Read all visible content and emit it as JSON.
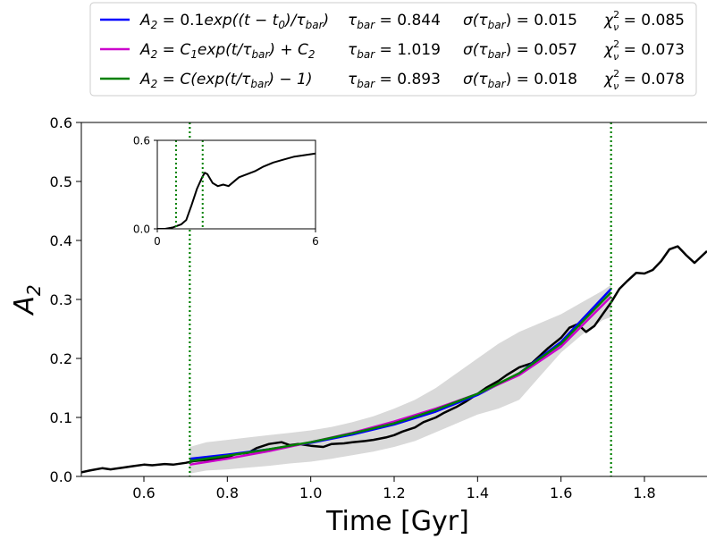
{
  "chart_data": [
    {
      "type": "line",
      "xlabel": "Time [Gyr]",
      "ylabel": "A",
      "ylabel_sub": "2",
      "xlim": [
        0.45,
        1.95
      ],
      "ylim": [
        0.0,
        0.6
      ],
      "xticks": [
        0.6,
        0.8,
        1.0,
        1.2,
        1.4,
        1.6,
        1.8
      ],
      "yticks": [
        0.0,
        0.1,
        0.2,
        0.3,
        0.4,
        0.5,
        0.6
      ],
      "grid": false,
      "legend_position": "top-center, above plot",
      "vlines": [
        0.71,
        1.72
      ],
      "vline_color": "#008000",
      "fit_range": [
        0.71,
        1.72
      ],
      "confidence_band": {
        "color": "#d9d9d9",
        "x": [
          0.71,
          0.75,
          0.8,
          0.85,
          0.9,
          0.95,
          1.0,
          1.05,
          1.1,
          1.15,
          1.2,
          1.25,
          1.3,
          1.35,
          1.4,
          1.45,
          1.5,
          1.55,
          1.6,
          1.65,
          1.7,
          1.72
        ],
        "lower": [
          0.005,
          0.01,
          0.012,
          0.015,
          0.018,
          0.022,
          0.025,
          0.03,
          0.036,
          0.042,
          0.05,
          0.06,
          0.075,
          0.09,
          0.105,
          0.115,
          0.13,
          0.17,
          0.21,
          0.24,
          0.265,
          0.27
        ],
        "upper": [
          0.05,
          0.058,
          0.062,
          0.066,
          0.07,
          0.074,
          0.078,
          0.084,
          0.092,
          0.102,
          0.115,
          0.13,
          0.15,
          0.175,
          0.2,
          0.225,
          0.245,
          0.26,
          0.275,
          0.295,
          0.315,
          0.325
        ]
      },
      "data_series": {
        "color": "#000000",
        "x": [
          0.45,
          0.47,
          0.5,
          0.52,
          0.55,
          0.57,
          0.6,
          0.62,
          0.65,
          0.67,
          0.7,
          0.72,
          0.75,
          0.78,
          0.8,
          0.82,
          0.85,
          0.87,
          0.9,
          0.93,
          0.95,
          0.97,
          1.0,
          1.03,
          1.05,
          1.08,
          1.1,
          1.13,
          1.15,
          1.18,
          1.2,
          1.22,
          1.25,
          1.27,
          1.3,
          1.32,
          1.35,
          1.37,
          1.4,
          1.42,
          1.45,
          1.47,
          1.5,
          1.53,
          1.55,
          1.57,
          1.6,
          1.62,
          1.64,
          1.66,
          1.68,
          1.7,
          1.72,
          1.74,
          1.76,
          1.78,
          1.8,
          1.82,
          1.84,
          1.86,
          1.88,
          1.9,
          1.92,
          1.95
        ],
        "y": [
          0.007,
          0.01,
          0.014,
          0.012,
          0.015,
          0.017,
          0.02,
          0.019,
          0.021,
          0.02,
          0.023,
          0.026,
          0.028,
          0.03,
          0.032,
          0.038,
          0.04,
          0.048,
          0.055,
          0.058,
          0.053,
          0.055,
          0.052,
          0.05,
          0.055,
          0.056,
          0.058,
          0.06,
          0.062,
          0.066,
          0.07,
          0.076,
          0.083,
          0.092,
          0.1,
          0.108,
          0.118,
          0.126,
          0.14,
          0.15,
          0.162,
          0.172,
          0.185,
          0.192,
          0.205,
          0.218,
          0.235,
          0.252,
          0.258,
          0.245,
          0.255,
          0.275,
          0.295,
          0.318,
          0.332,
          0.345,
          0.344,
          0.35,
          0.365,
          0.385,
          0.39,
          0.375,
          0.362,
          0.382
        ]
      },
      "series": [
        {
          "name": "A₂ = 0.1exp((t − t₀)/τbar)",
          "color": "#0000ff",
          "tau_bar": "0.844",
          "sigma_tau": "0.015",
          "chi2": "0.085",
          "x": [
            0.71,
            0.8,
            0.9,
            1.0,
            1.1,
            1.2,
            1.3,
            1.4,
            1.5,
            1.6,
            1.72
          ],
          "y": [
            0.03,
            0.037,
            0.046,
            0.057,
            0.071,
            0.088,
            0.11,
            0.138,
            0.175,
            0.228,
            0.318
          ]
        },
        {
          "name": "A₂ = C₁exp(t/τbar) + C₂",
          "color": "#cc00cc",
          "tau_bar": "1.019",
          "sigma_tau": "0.057",
          "chi2": "0.073",
          "x": [
            0.71,
            0.8,
            0.9,
            1.0,
            1.1,
            1.2,
            1.3,
            1.4,
            1.5,
            1.6,
            1.72
          ],
          "y": [
            0.02,
            0.03,
            0.043,
            0.058,
            0.074,
            0.093,
            0.115,
            0.14,
            0.172,
            0.22,
            0.305
          ]
        },
        {
          "name": "A₂ = C(exp(t/τbar) − 1)",
          "color": "#008000",
          "tau_bar": "0.893",
          "sigma_tau": "0.018",
          "chi2": "0.078",
          "x": [
            0.71,
            0.8,
            0.9,
            1.0,
            1.1,
            1.2,
            1.3,
            1.4,
            1.5,
            1.6,
            1.72
          ],
          "y": [
            0.026,
            0.035,
            0.046,
            0.058,
            0.073,
            0.09,
            0.113,
            0.14,
            0.175,
            0.225,
            0.312
          ]
        }
      ]
    },
    {
      "type": "line",
      "role": "inset",
      "xlim": [
        0,
        6
      ],
      "ylim": [
        0.0,
        0.6
      ],
      "xticks": [
        0,
        6
      ],
      "yticks": [
        0.0,
        0.6
      ],
      "vlines": [
        0.71,
        1.72
      ],
      "vline_color": "#008000",
      "data_series": {
        "color": "#000000",
        "x": [
          0.0,
          0.3,
          0.6,
          0.9,
          1.1,
          1.3,
          1.5,
          1.7,
          1.8,
          1.9,
          2.0,
          2.1,
          2.3,
          2.5,
          2.7,
          2.9,
          3.1,
          3.4,
          3.7,
          4.0,
          4.4,
          4.8,
          5.2,
          5.6,
          6.0
        ],
        "y": [
          0.0,
          0.0,
          0.01,
          0.03,
          0.06,
          0.16,
          0.27,
          0.35,
          0.38,
          0.37,
          0.34,
          0.31,
          0.29,
          0.3,
          0.29,
          0.32,
          0.35,
          0.37,
          0.39,
          0.42,
          0.45,
          0.47,
          0.49,
          0.5,
          0.51
        ]
      }
    }
  ],
  "legend": {
    "tau_label": "τbar =",
    "sigma_label": "σ(τbar) =",
    "chi_label": "χ²ν ="
  }
}
